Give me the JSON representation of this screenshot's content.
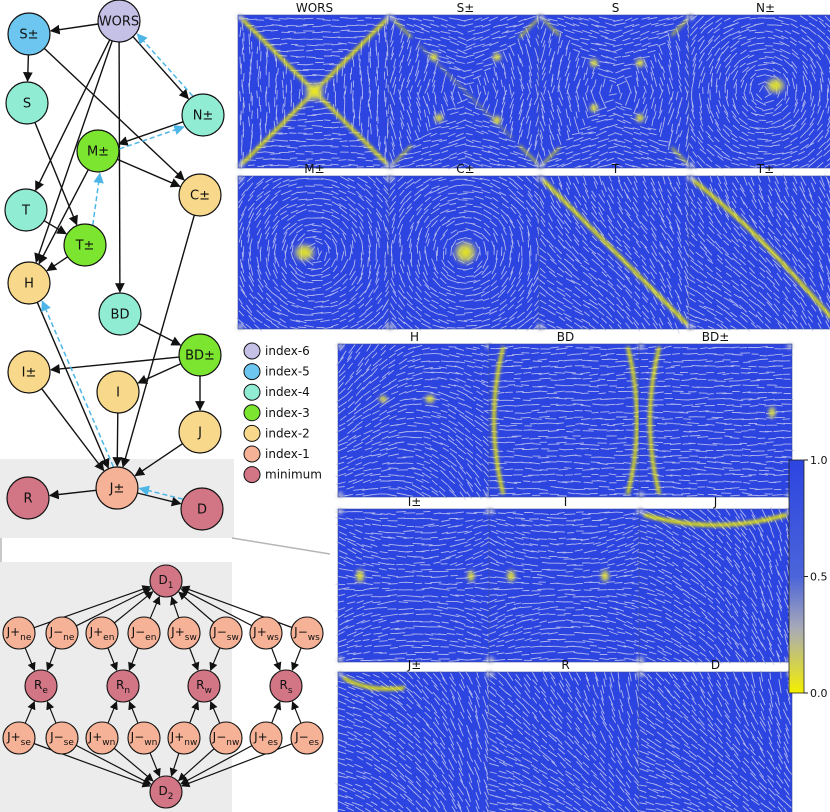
{
  "colors": {
    "index6": "#c5c0e6",
    "index5": "#6cc6ef",
    "index4": "#90ecd3",
    "index3": "#7be52f",
    "index2": "#f8d88a",
    "index1": "#f6b297",
    "minimum": "#d27585",
    "field": "#2d45e0",
    "defect": "#f4f000",
    "dashed": "#4db6e6"
  },
  "nodes": {
    "WORS": "WORS",
    "Spm": "S±",
    "S": "S",
    "Npm": "N±",
    "Mpm": "M±",
    "Cpm": "C±",
    "T": "T",
    "Tpm": "T±",
    "H": "H",
    "BD": "BD",
    "BDpm": "BD±",
    "Ipm": "I±",
    "I": "I",
    "J": "J",
    "Jpm": "J±",
    "R": "R",
    "D": "D"
  },
  "legend": [
    {
      "label": "index-6",
      "color": "#c5c0e6"
    },
    {
      "label": "index-5",
      "color": "#6cc6ef"
    },
    {
      "label": "index-4",
      "color": "#90ecd3"
    },
    {
      "label": "index-3",
      "color": "#7be52f"
    },
    {
      "label": "index-2",
      "color": "#f8d88a"
    },
    {
      "label": "index-1",
      "color": "#f6b297"
    },
    {
      "label": "minimum",
      "color": "#d27585"
    }
  ],
  "inset": {
    "D1": {
      "base": "D",
      "sub": "1"
    },
    "D2": {
      "base": "D",
      "sub": "2"
    },
    "Re": {
      "base": "R",
      "sub": "e"
    },
    "Rn": {
      "base": "R",
      "sub": "n"
    },
    "Rw": {
      "base": "R",
      "sub": "w"
    },
    "Rs": {
      "base": "R",
      "sub": "s"
    },
    "top": [
      {
        "base": "J+",
        "sub": "ne"
      },
      {
        "base": "J−",
        "sub": "ne"
      },
      {
        "base": "J+",
        "sub": "en"
      },
      {
        "base": "J−",
        "sub": "en"
      },
      {
        "base": "J+",
        "sub": "sw"
      },
      {
        "base": "J−",
        "sub": "sw"
      },
      {
        "base": "J+",
        "sub": "ws"
      },
      {
        "base": "J−",
        "sub": "ws"
      }
    ],
    "bottom": [
      {
        "base": "J+",
        "sub": "se"
      },
      {
        "base": "J−",
        "sub": "se"
      },
      {
        "base": "J+",
        "sub": "wn"
      },
      {
        "base": "J−",
        "sub": "wn"
      },
      {
        "base": "J+",
        "sub": "nw"
      },
      {
        "base": "J−",
        "sub": "nw"
      },
      {
        "base": "J+",
        "sub": "es"
      },
      {
        "base": "J−",
        "sub": "es"
      }
    ]
  },
  "panels": [
    {
      "title": "WORS",
      "defect": "x"
    },
    {
      "title": "S±",
      "defect": "s_pm"
    },
    {
      "title": "S",
      "defect": "s"
    },
    {
      "title": "N±",
      "defect": "center_small"
    },
    {
      "title": "M±",
      "defect": "center_left"
    },
    {
      "title": "C±",
      "defect": "center"
    },
    {
      "title": "T",
      "defect": "diag_main"
    },
    {
      "title": "T±",
      "defect": "diag_wavy"
    },
    {
      "title": "H",
      "defect": "h"
    },
    {
      "title": "BD",
      "defect": "bd"
    },
    {
      "title": "BD±",
      "defect": "bd_pm"
    },
    {
      "title": "I±",
      "defect": "i_pm"
    },
    {
      "title": "I",
      "defect": "i"
    },
    {
      "title": "J",
      "defect": "j"
    },
    {
      "title": "J±",
      "defect": "j_pm"
    },
    {
      "title": "R",
      "defect": "none"
    },
    {
      "title": "D",
      "defect": "none"
    }
  ],
  "colorbar": {
    "ticks": [
      "1.0",
      "0.5",
      "0.0"
    ],
    "range": [
      0,
      1
    ]
  }
}
